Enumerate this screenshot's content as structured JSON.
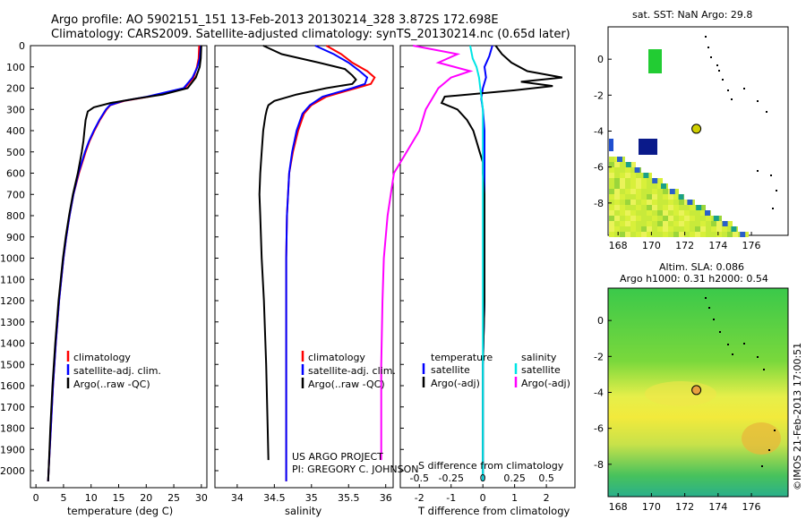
{
  "header": {
    "line1": "Argo profile: AO 5902151_151 13-Feb-2013 20130214_328 3.872S 172.698E",
    "line2": "Climatology: CARS2009. Satellite-adjusted climatology: synTS_20130214.nc (0.65d later)"
  },
  "depth_ticks": [
    "0",
    "100",
    "200",
    "300",
    "400",
    "500",
    "600",
    "700",
    "800",
    "900",
    "1000",
    "1100",
    "1200",
    "1300",
    "1400",
    "1500",
    "1600",
    "1700",
    "1800",
    "1900",
    "2000"
  ],
  "colors": {
    "climatology": "#ff0000",
    "satellite": "#0000ff",
    "argo": "#000000",
    "t_argo_adj": "#000000",
    "s_sat": "#00e5e5",
    "s_argo_adj": "#ff00ff",
    "marker": "#cfcf00"
  },
  "chart_data": [
    {
      "type": "line",
      "name": "temperature",
      "xlabel": "temperature (deg C)",
      "xlim": [
        -1,
        31
      ],
      "ylim": [
        2080,
        0
      ],
      "xticks": [
        "0",
        "5",
        "10",
        "15",
        "20",
        "25",
        "30"
      ],
      "legend": [
        "climatology",
        "satellite-adj. clim.",
        "Argo(..raw -QC)"
      ],
      "series": [
        {
          "name": "climatology",
          "depth": [
            0,
            60,
            100,
            150,
            200,
            240,
            260,
            280,
            300,
            350,
            400,
            450,
            500,
            600,
            700,
            800,
            900,
            1000,
            1200,
            1400,
            1600,
            1800,
            2000,
            2050
          ],
          "values": [
            29.6,
            29.5,
            29.2,
            28.6,
            27.0,
            20.5,
            16.0,
            13.5,
            12.8,
            11.6,
            10.6,
            9.7,
            9.0,
            7.8,
            6.8,
            6.1,
            5.5,
            5.0,
            4.2,
            3.6,
            3.1,
            2.7,
            2.3,
            2.2
          ]
        },
        {
          "name": "satellite-adj. clim.",
          "depth": [
            0,
            60,
            100,
            150,
            200,
            240,
            260,
            280,
            300,
            350,
            400,
            450,
            500,
            600,
            700,
            800,
            900,
            1000,
            1200,
            1400,
            1600,
            1800,
            2000,
            2050
          ],
          "values": [
            29.9,
            29.7,
            29.3,
            28.4,
            26.8,
            20.2,
            15.8,
            13.4,
            12.7,
            11.5,
            10.5,
            9.6,
            8.9,
            7.7,
            6.8,
            6.1,
            5.5,
            5.0,
            4.2,
            3.6,
            3.1,
            2.7,
            2.3,
            2.2
          ]
        },
        {
          "name": "Argo(..raw -QC)",
          "depth": [
            0,
            60,
            100,
            150,
            200,
            230,
            250,
            270,
            290,
            310,
            350,
            400,
            450,
            500,
            600,
            700,
            800,
            900,
            1000,
            1200,
            1400,
            1600,
            1800,
            2000,
            2050
          ],
          "values": [
            30.0,
            29.9,
            29.7,
            29.0,
            27.5,
            23.0,
            18.0,
            13.5,
            10.5,
            9.4,
            9.0,
            8.8,
            8.6,
            8.3,
            7.6,
            6.7,
            6.0,
            5.4,
            4.9,
            4.1,
            3.5,
            3.0,
            2.6,
            2.3,
            2.2
          ]
        }
      ]
    },
    {
      "type": "line",
      "name": "salinity",
      "xlabel": "salinity",
      "xlim": [
        33.7,
        36.1
      ],
      "ylim": [
        2080,
        0
      ],
      "xticks": [
        "34",
        "34.5",
        "35",
        "35.5",
        "36"
      ],
      "legend": [
        "climatology",
        "satellite-adj. clim.",
        "Argo(..raw -QC)"
      ],
      "series": [
        {
          "name": "climatology",
          "depth": [
            0,
            40,
            80,
            120,
            150,
            180,
            200,
            240,
            280,
            320,
            400,
            500,
            600,
            800,
            1000,
            1200,
            1500,
            2000,
            2050
          ],
          "values": [
            35.2,
            35.4,
            35.55,
            35.75,
            35.85,
            35.8,
            35.6,
            35.2,
            35.0,
            34.9,
            34.82,
            34.75,
            34.7,
            34.67,
            34.66,
            34.66,
            34.66,
            34.66,
            34.66
          ]
        },
        {
          "name": "satellite-adj. clim.",
          "depth": [
            0,
            40,
            80,
            120,
            150,
            180,
            200,
            240,
            280,
            320,
            400,
            500,
            600,
            800,
            1000,
            1200,
            1500,
            2000,
            2050
          ],
          "values": [
            35.05,
            35.3,
            35.5,
            35.65,
            35.75,
            35.72,
            35.55,
            35.15,
            34.98,
            34.88,
            34.8,
            34.74,
            34.7,
            34.67,
            34.66,
            34.66,
            34.66,
            34.66,
            34.66
          ]
        },
        {
          "name": "Argo(..raw -QC)",
          "depth": [
            0,
            40,
            80,
            110,
            140,
            160,
            180,
            200,
            230,
            260,
            280,
            300,
            330,
            400,
            500,
            600,
            700,
            800,
            1000,
            1200,
            1500,
            1800,
            1950
          ],
          "values": [
            34.35,
            34.6,
            35.1,
            35.45,
            35.55,
            35.6,
            35.55,
            35.2,
            34.8,
            34.5,
            34.42,
            34.4,
            34.38,
            34.35,
            34.33,
            34.31,
            34.3,
            34.31,
            34.33,
            34.36,
            34.39,
            34.41,
            34.42
          ]
        }
      ]
    },
    {
      "type": "line",
      "name": "difference from climatology",
      "xlabel": "T difference from climatology",
      "xlabel_top": "S difference from climatology",
      "xlim": [
        -2.6,
        2.9
      ],
      "ylim": [
        2080,
        0
      ],
      "xticks": [
        "-2",
        "-1",
        "0",
        "1",
        "2"
      ],
      "sticks": [
        "-0.5",
        "-0.25",
        "0",
        "0.25",
        "0.5"
      ],
      "legend_temperature": [
        "temperature",
        "satellite",
        "Argo(-adj)"
      ],
      "legend_salinity": [
        "salinity",
        "satellite",
        "Argo(-adj)"
      ],
      "series": [
        {
          "name": "T satellite",
          "depth": [
            0,
            50,
            100,
            150,
            200,
            250,
            300,
            400,
            500,
            800,
            1200,
            1500,
            1800,
            2000,
            2050
          ],
          "values": [
            0.3,
            0.2,
            0.05,
            0.1,
            0.0,
            -0.05,
            0.0,
            0.05,
            0.05,
            0.05,
            0.05,
            0.0,
            0.0,
            0.0,
            0.0
          ]
        },
        {
          "name": "T Argo(-adj)",
          "depth": [
            0,
            40,
            80,
            120,
            150,
            170,
            190,
            210,
            240,
            270,
            300,
            350,
            400,
            450,
            500,
            550,
            600,
            700,
            800,
            1000,
            1200,
            1500,
            1800,
            2000,
            2050
          ],
          "values": [
            0.4,
            0.6,
            0.9,
            1.4,
            2.5,
            1.2,
            2.2,
            1.0,
            -1.2,
            -1.3,
            -0.8,
            -0.5,
            -0.3,
            -0.2,
            -0.1,
            0.0,
            0.0,
            0.05,
            0.05,
            0.05,
            0.05,
            0.0,
            0.0,
            0.0,
            0.0
          ]
        },
        {
          "name": "S satellite",
          "depth": [
            0,
            60,
            100,
            150,
            200,
            250,
            300,
            400,
            500,
            800,
            1200,
            1500,
            1800,
            2000,
            2050
          ],
          "values": [
            -0.1,
            -0.08,
            -0.05,
            -0.03,
            -0.02,
            -0.01,
            0.0,
            0.0,
            0.0,
            0.0,
            0.0,
            0.0,
            0.0,
            0.0,
            0.0
          ]
        },
        {
          "name": "S Argo(-adj)",
          "depth": [
            0,
            40,
            80,
            120,
            150,
            200,
            250,
            300,
            400,
            500,
            600,
            800,
            1000,
            1200,
            1500,
            1800,
            1950
          ],
          "values": [
            -0.55,
            -0.2,
            -0.35,
            -0.1,
            -0.25,
            -0.35,
            -0.4,
            -0.45,
            -0.5,
            -0.6,
            -0.7,
            -0.75,
            -0.78,
            -0.79,
            -0.8,
            -0.8,
            -0.8
          ]
        }
      ]
    },
    {
      "type": "heatmap",
      "name": "SST map",
      "title": "sat. SST: NaN Argo: 29.8",
      "xticks": [
        "168",
        "170",
        "172",
        "174",
        "176"
      ],
      "yticks": [
        "0",
        "-2",
        "-4",
        "-6",
        "-8"
      ],
      "marker": {
        "lon": 172.698,
        "lat": -3.872
      }
    },
    {
      "type": "heatmap",
      "name": "SLA map",
      "title1": "Altim. SLA: 0.086",
      "title2": "Argo h1000: 0.31 h2000: 0.54",
      "xticks": [
        "168",
        "170",
        "172",
        "174",
        "176"
      ],
      "yticks": [
        "0",
        "-2",
        "-4",
        "-6",
        "-8"
      ],
      "marker": {
        "lon": 172.698,
        "lat": -3.872
      }
    }
  ],
  "annotations": {
    "project1": "US ARGO PROJECT",
    "project2": "PI: GREGORY C. JOHNSON",
    "sidebar": "©IMOS 21-Feb-2013 17:00:51"
  }
}
